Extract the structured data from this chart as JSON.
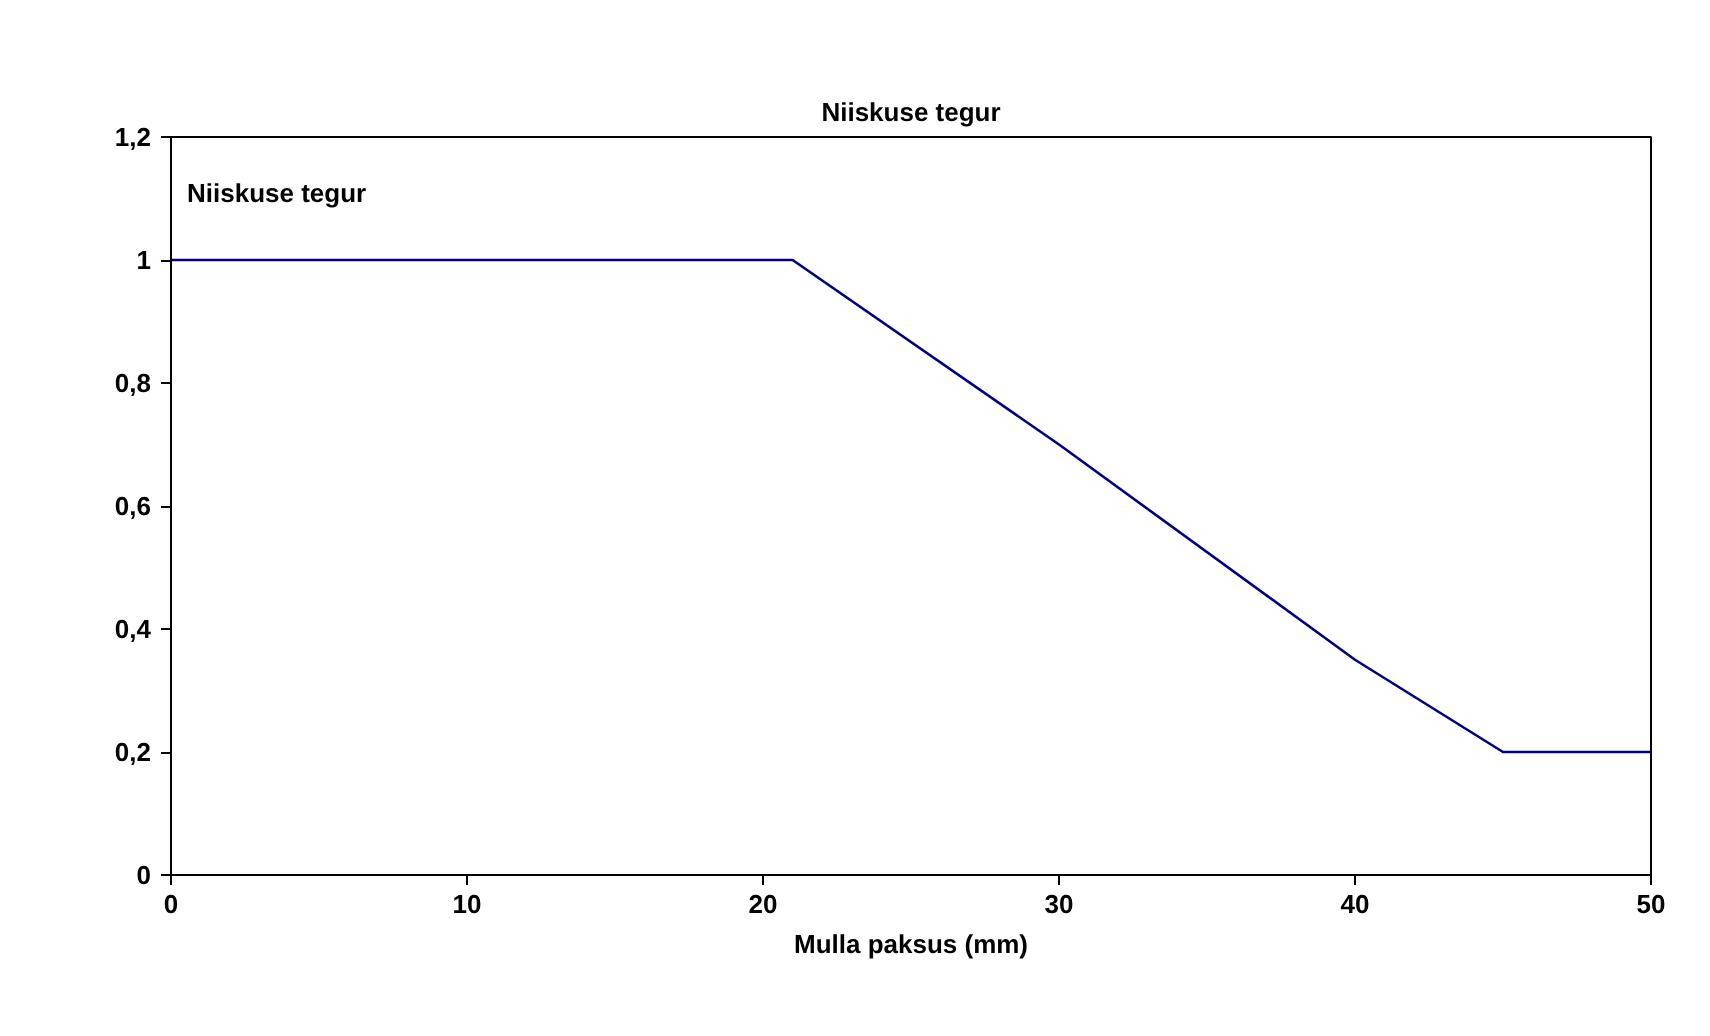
{
  "chart_data": {
    "type": "line",
    "title": "Niiskuse tegur",
    "xlabel": "Mulla paksus (mm)",
    "x": [
      0,
      21,
      30,
      40,
      45,
      50
    ],
    "series": [
      {
        "color": "#000080",
        "values": [
          1,
          1,
          0.7,
          0.35,
          0.2,
          0.2
        ]
      }
    ],
    "annotations": [
      "Niiskuse tegur"
    ],
    "xlim": [
      0,
      50
    ],
    "xticks": [
      0,
      10,
      20,
      30,
      40,
      50
    ],
    "ylim": [
      0,
      1.2
    ],
    "yticks": [
      0,
      {
        "value": 0.2,
        "label": "0,2"
      },
      {
        "value": 0.4,
        "label": "0,4"
      },
      {
        "value": 0.6,
        "label": "0,6"
      },
      {
        "value": 0.8,
        "label": "0,8"
      },
      1,
      {
        "value": 1.2,
        "label": "1,2"
      }
    ],
    "grid": false,
    "marker": "none",
    "line_style": "solid"
  }
}
